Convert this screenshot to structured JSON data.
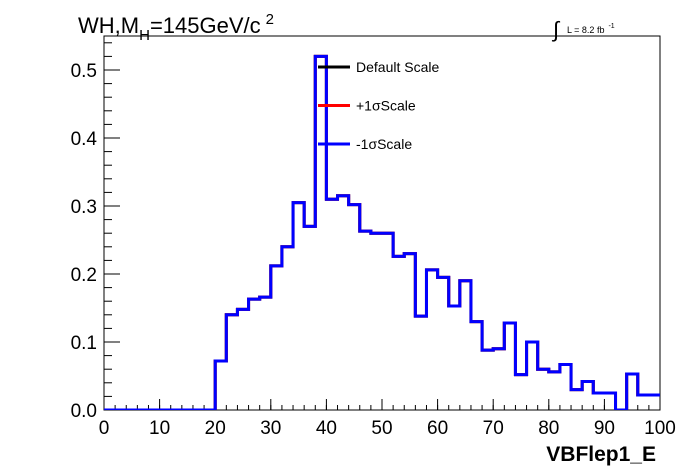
{
  "chart_data": {
    "type": "line",
    "step": true,
    "title_prefix": "WH,M",
    "title_sub": "H",
    "title_suffix": "=145GeV/c",
    "title_sup": "2",
    "lumi": {
      "integral": "∫",
      "text": "L = 8.2 fb",
      "sup": "-1"
    },
    "xlabel": "VBFlep1_E",
    "ylabel": "",
    "xlim": [
      0,
      100
    ],
    "ylim": [
      0,
      0.55
    ],
    "x_ticks": [
      "0",
      "10",
      "20",
      "30",
      "40",
      "50",
      "60",
      "70",
      "80",
      "90",
      "100"
    ],
    "y_ticks": [
      "0.0",
      "0.1",
      "0.2",
      "0.3",
      "0.4",
      "0.5"
    ],
    "legend_position": "top-center",
    "grid": false,
    "bin_width": 2,
    "series": [
      {
        "name": "Default Scale",
        "color": "#000000",
        "values": [
          0,
          0,
          0,
          0,
          0,
          0,
          0,
          0,
          0,
          0,
          0.072,
          0.14,
          0.148,
          0.163,
          0.166,
          0.212,
          0.24,
          0.305,
          0.27,
          0.52,
          0.31,
          0.315,
          0.302,
          0.263,
          0.26,
          0.26,
          0.226,
          0.23,
          0.138,
          0.206,
          0.195,
          0.153,
          0.19,
          0.13,
          0.088,
          0.09,
          0.128,
          0.052,
          0.1,
          0.06,
          0.056,
          0.067,
          0.03,
          0.042,
          0.025,
          0.025,
          0.0,
          0.053,
          0.022,
          0.022
        ]
      },
      {
        "name": "+1σScale",
        "color": "#ff0000",
        "values": [
          0,
          0,
          0,
          0,
          0,
          0,
          0,
          0,
          0,
          0,
          0.072,
          0.14,
          0.148,
          0.163,
          0.166,
          0.212,
          0.24,
          0.305,
          0.27,
          0.52,
          0.31,
          0.315,
          0.302,
          0.263,
          0.26,
          0.26,
          0.226,
          0.23,
          0.138,
          0.206,
          0.195,
          0.153,
          0.19,
          0.13,
          0.088,
          0.09,
          0.128,
          0.052,
          0.1,
          0.06,
          0.056,
          0.067,
          0.03,
          0.042,
          0.025,
          0.025,
          0.0,
          0.053,
          0.022,
          0.022
        ]
      },
      {
        "name": "-1σScale",
        "color": "#0000ff",
        "values": [
          0,
          0,
          0,
          0,
          0,
          0,
          0,
          0,
          0,
          0,
          0.072,
          0.14,
          0.148,
          0.163,
          0.166,
          0.212,
          0.24,
          0.305,
          0.27,
          0.52,
          0.31,
          0.315,
          0.302,
          0.263,
          0.26,
          0.26,
          0.226,
          0.23,
          0.138,
          0.206,
          0.195,
          0.153,
          0.19,
          0.13,
          0.088,
          0.09,
          0.128,
          0.052,
          0.1,
          0.06,
          0.056,
          0.067,
          0.03,
          0.042,
          0.025,
          0.025,
          0.0,
          0.053,
          0.022,
          0.022
        ]
      }
    ]
  }
}
